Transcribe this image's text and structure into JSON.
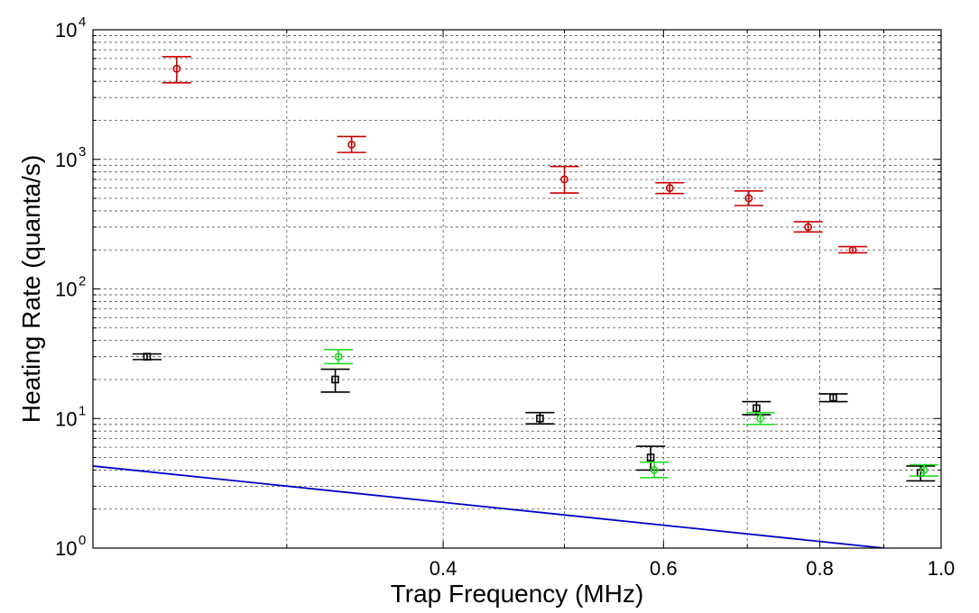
{
  "chart_data": {
    "type": "scatter",
    "xlabel": "Trap Frequency (MHz)",
    "ylabel": "Heating Rate (quanta/s)",
    "xscale": "log",
    "yscale": "log",
    "xlim": [
      0.21,
      1.0
    ],
    "ylim": [
      1,
      10000
    ],
    "xticks": [
      0.4,
      0.6,
      0.8,
      1.0
    ],
    "xtick_labels": [
      "0.4",
      "0.6",
      "0.8",
      "1.0"
    ],
    "yticks": [
      1,
      10,
      100,
      1000,
      10000
    ],
    "ytick_bases": [
      "10",
      "10",
      "10",
      "10",
      "10"
    ],
    "ytick_exponents": [
      "0",
      "1",
      "2",
      "3",
      "4"
    ],
    "grid": true,
    "series": [
      {
        "name": "red-circles",
        "color": "#cc0000",
        "marker": "circle",
        "points": [
          {
            "x": 0.245,
            "y": 5000,
            "lo": 3900,
            "hi": 6200
          },
          {
            "x": 0.338,
            "y": 1300,
            "lo": 1130,
            "hi": 1500
          },
          {
            "x": 0.5,
            "y": 700,
            "lo": 550,
            "hi": 880
          },
          {
            "x": 0.607,
            "y": 600,
            "lo": 545,
            "hi": 660
          },
          {
            "x": 0.702,
            "y": 500,
            "lo": 440,
            "hi": 570
          },
          {
            "x": 0.783,
            "y": 300,
            "lo": 275,
            "hi": 330
          },
          {
            "x": 0.85,
            "y": 200,
            "lo": 190,
            "hi": 212
          }
        ]
      },
      {
        "name": "black-squares",
        "color": "#000000",
        "marker": "square",
        "points": [
          {
            "x": 0.232,
            "y": 30,
            "lo": 28.5,
            "hi": 31.5
          },
          {
            "x": 0.328,
            "y": 20,
            "lo": 16,
            "hi": 24
          },
          {
            "x": 0.478,
            "y": 10,
            "lo": 9.1,
            "hi": 11.1
          },
          {
            "x": 0.586,
            "y": 5,
            "lo": 4,
            "hi": 6.1
          },
          {
            "x": 0.712,
            "y": 12,
            "lo": 10.7,
            "hi": 13.5
          },
          {
            "x": 0.82,
            "y": 14.5,
            "lo": 13.5,
            "hi": 15.5
          },
          {
            "x": 0.963,
            "y": 3.8,
            "lo": 3.3,
            "hi": 4.3
          }
        ]
      },
      {
        "name": "green-circles",
        "color": "#22dd22",
        "marker": "circle",
        "points": [
          {
            "x": 0.33,
            "y": 30,
            "lo": 26.5,
            "hi": 34
          },
          {
            "x": 0.59,
            "y": 4,
            "lo": 3.5,
            "hi": 4.6
          },
          {
            "x": 0.717,
            "y": 10,
            "lo": 9,
            "hi": 11.1
          },
          {
            "x": 0.969,
            "y": 4,
            "lo": 3.6,
            "hi": 4.4
          }
        ]
      }
    ],
    "line": {
      "name": "blue-fit-line",
      "color": "#0000cc",
      "x": [
        0.21,
        0.9
      ],
      "y": [
        4.3,
        1.0
      ]
    }
  }
}
